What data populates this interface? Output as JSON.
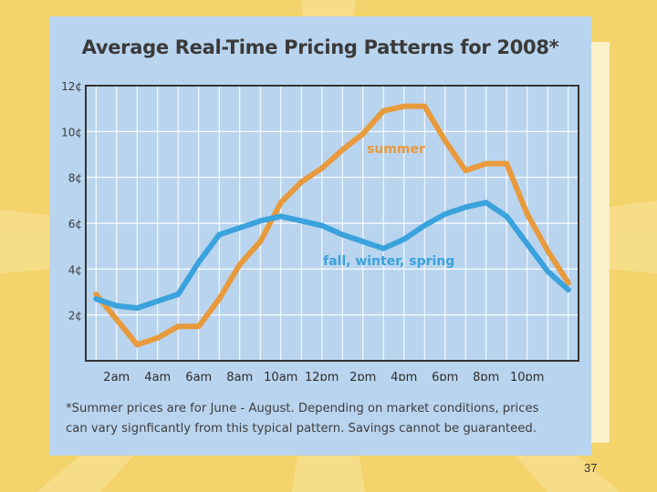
{
  "page_number": "37",
  "footnote": {
    "line1": "*Summer prices are for June - August. Depending on market conditions, prices",
    "line2": "can vary signficantly from this typical pattern. Savings cannot be guaranteed."
  },
  "colors": {
    "background": "#f3d36b",
    "card": "#b9d4ee",
    "summer": "#e89a3c",
    "fall_winter_spring": "#3aa2dc"
  },
  "chart_data": {
    "type": "line",
    "title": "Average Real-Time Pricing Patterns  for 2008*",
    "xlabel": "",
    "ylabel": "",
    "ylim": [
      0,
      12
    ],
    "yticks": [
      {
        "value": 2,
        "label": "2¢"
      },
      {
        "value": 4,
        "label": "4¢"
      },
      {
        "value": 6,
        "label": "6¢"
      },
      {
        "value": 8,
        "label": "8¢"
      },
      {
        "value": 10,
        "label": "10¢"
      },
      {
        "value": 12,
        "label": "12¢"
      }
    ],
    "xlim": [
      0.5,
      24.5
    ],
    "xticks": [
      {
        "value": 2,
        "label": "2am"
      },
      {
        "value": 4,
        "label": "4am"
      },
      {
        "value": 6,
        "label": "6am"
      },
      {
        "value": 8,
        "label": "8am"
      },
      {
        "value": 10,
        "label": "10am"
      },
      {
        "value": 12,
        "label": "12pm"
      },
      {
        "value": 14,
        "label": "2pm"
      },
      {
        "value": 16,
        "label": "4pm"
      },
      {
        "value": 18,
        "label": "6pm"
      },
      {
        "value": 20,
        "label": "8pm"
      },
      {
        "value": 22,
        "label": "10pm"
      }
    ],
    "grid": true,
    "series": [
      {
        "name": "summer",
        "label": "summer",
        "color": "#e89a3c",
        "x": [
          1,
          2,
          3,
          4,
          5,
          6,
          7,
          8,
          9,
          10,
          11,
          12,
          13,
          14,
          15,
          16,
          17,
          18,
          19,
          20,
          21,
          22,
          23,
          24
        ],
        "values": [
          2.9,
          1.8,
          0.7,
          1.0,
          1.5,
          1.5,
          2.7,
          4.2,
          5.2,
          6.9,
          7.8,
          8.4,
          9.2,
          9.9,
          10.9,
          11.1,
          11.1,
          9.6,
          8.3,
          8.6,
          8.6,
          6.4,
          4.8,
          3.4
        ]
      },
      {
        "name": "fall, winter, spring",
        "label": "fall, winter, spring",
        "color": "#3aa2dc",
        "x": [
          1,
          2,
          3,
          4,
          5,
          6,
          7,
          8,
          9,
          10,
          11,
          12,
          13,
          14,
          15,
          16,
          17,
          18,
          19,
          20,
          21,
          22,
          23,
          24
        ],
        "values": [
          2.7,
          2.4,
          2.3,
          2.6,
          2.9,
          4.3,
          5.5,
          5.8,
          6.1,
          6.3,
          6.1,
          5.9,
          5.5,
          5.2,
          4.9,
          5.3,
          5.9,
          6.4,
          6.7,
          6.9,
          6.3,
          5.1,
          3.9,
          3.1
        ]
      }
    ]
  }
}
